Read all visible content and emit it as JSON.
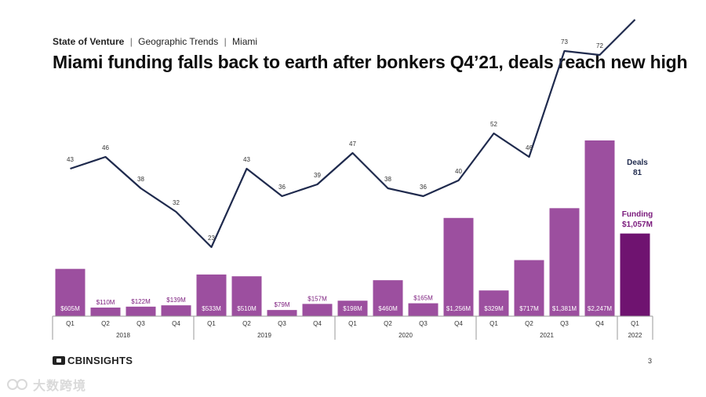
{
  "breadcrumb": {
    "brand": "State of Venture",
    "section": "Geographic Trends",
    "region": "Miami",
    "separator": "|"
  },
  "page_title": "Miami funding falls back to earth after bonkers Q4’21, deals reach new high",
  "footer": {
    "logo_text": "CBINSIGHTS",
    "page_number": "3"
  },
  "watermark": {
    "text": "大数跨境"
  },
  "colors": {
    "bar": "#9c4f9f",
    "bar_highlight": "#6f1370",
    "line": "#1f2a4d",
    "funding_label": "#7a1a7c",
    "axis": "#9a9a9a"
  },
  "chart_data": {
    "type": "bar",
    "title": "",
    "categories": [
      "Q1",
      "Q2",
      "Q3",
      "Q4",
      "Q1",
      "Q2",
      "Q3",
      "Q4",
      "Q1",
      "Q2",
      "Q3",
      "Q4",
      "Q1",
      "Q2",
      "Q3",
      "Q4",
      "Q1"
    ],
    "years": [
      {
        "label": "2018",
        "span": 4
      },
      {
        "label": "2019",
        "span": 4
      },
      {
        "label": "2020",
        "span": 4
      },
      {
        "label": "2021",
        "span": 4
      },
      {
        "label": "2022",
        "span": 1
      }
    ],
    "series": [
      {
        "name": "Funding",
        "kind": "bar",
        "values": [
          605,
          110,
          122,
          139,
          533,
          510,
          79,
          157,
          198,
          460,
          165,
          1256,
          329,
          717,
          1381,
          2247,
          1057
        ],
        "labels": [
          "$605M",
          "$110M",
          "$122M",
          "$139M",
          "$533M",
          "$510M",
          "$79M",
          "$157M",
          "$198M",
          "$460M",
          "$165M",
          "$1,256M",
          "$329M",
          "$717M",
          "$1,381M",
          "$2,247M",
          ""
        ]
      },
      {
        "name": "Deals",
        "kind": "line",
        "values": [
          43,
          46,
          38,
          32,
          23,
          43,
          36,
          39,
          47,
          38,
          36,
          40,
          52,
          46,
          73,
          72,
          81
        ],
        "labels": [
          "43",
          "46",
          "38",
          "32",
          "23",
          "43",
          "36",
          "39",
          "47",
          "38",
          "36",
          "40",
          "52",
          "46",
          "73",
          "72",
          ""
        ]
      }
    ],
    "callouts": {
      "deals_name": "Deals",
      "deals_value": "81",
      "funding_name": "Funding",
      "funding_value": "$1,057M"
    },
    "highlight_index": 16,
    "grid": false,
    "legend": "none"
  }
}
